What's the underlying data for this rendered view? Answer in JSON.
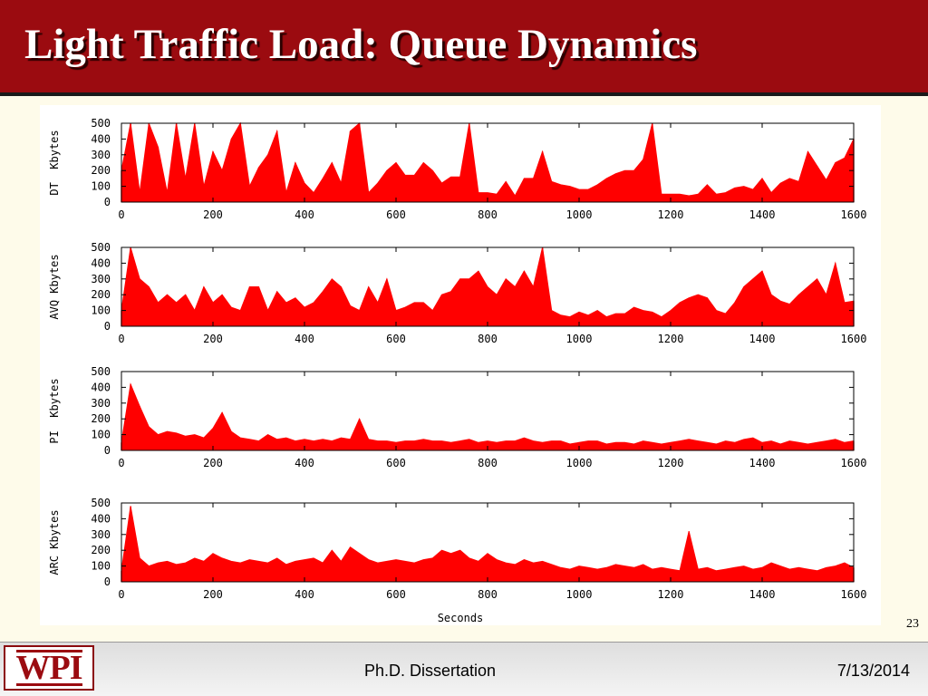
{
  "slide": {
    "title": "Light Traffic Load: Queue Dynamics",
    "page_number": "23"
  },
  "footer": {
    "logo_text": "WPI",
    "center_text": "Ph.D. Dissertation",
    "date": "7/13/2014"
  },
  "colors": {
    "title_bar": "#9b0b10",
    "series": "#ff0000",
    "background": "#fefbea"
  },
  "chart_data": [
    {
      "type": "area",
      "ylabel": "DT  Kbytes",
      "xlabel": "",
      "xlim": [
        0,
        1600
      ],
      "ylim": [
        0,
        500
      ],
      "x_ticks": [
        "0",
        "200",
        "400",
        "600",
        "800",
        "1000",
        "1200",
        "1400",
        "1600"
      ],
      "y_ticks": [
        "0",
        "100",
        "200",
        "300",
        "400",
        "500"
      ],
      "x": [
        0,
        20,
        40,
        60,
        80,
        100,
        120,
        140,
        160,
        180,
        200,
        220,
        240,
        260,
        280,
        300,
        320,
        340,
        360,
        380,
        400,
        420,
        440,
        460,
        480,
        500,
        520,
        540,
        560,
        580,
        600,
        620,
        640,
        660,
        680,
        700,
        720,
        740,
        760,
        780,
        800,
        820,
        840,
        860,
        880,
        900,
        920,
        940,
        960,
        980,
        1000,
        1020,
        1040,
        1060,
        1080,
        1100,
        1120,
        1140,
        1160,
        1180,
        1200,
        1220,
        1240,
        1260,
        1280,
        1300,
        1320,
        1340,
        1360,
        1380,
        1400,
        1420,
        1440,
        1460,
        1480,
        1500,
        1520,
        1540,
        1560,
        1580,
        1600
      ],
      "values": [
        200,
        500,
        60,
        500,
        350,
        60,
        500,
        150,
        500,
        100,
        320,
        200,
        400,
        500,
        100,
        220,
        300,
        450,
        60,
        250,
        120,
        60,
        150,
        250,
        120,
        450,
        500,
        60,
        120,
        200,
        250,
        170,
        170,
        250,
        200,
        120,
        160,
        160,
        500,
        60,
        60,
        50,
        130,
        40,
        150,
        150,
        320,
        130,
        110,
        100,
        80,
        80,
        110,
        150,
        180,
        200,
        200,
        270,
        500,
        50,
        50,
        50,
        40,
        50,
        110,
        50,
        60,
        90,
        100,
        80,
        150,
        60,
        120,
        150,
        130,
        320,
        230,
        140,
        250,
        280,
        400
      ]
    },
    {
      "type": "area",
      "ylabel": "AVQ Kbytes",
      "xlabel": "",
      "xlim": [
        0,
        1600
      ],
      "ylim": [
        0,
        500
      ],
      "x_ticks": [
        "0",
        "200",
        "400",
        "600",
        "800",
        "1000",
        "1200",
        "1400",
        "1600"
      ],
      "y_ticks": [
        "0",
        "100",
        "200",
        "300",
        "400",
        "500"
      ],
      "x": [
        0,
        20,
        40,
        60,
        80,
        100,
        120,
        140,
        160,
        180,
        200,
        220,
        240,
        260,
        280,
        300,
        320,
        340,
        360,
        380,
        400,
        420,
        440,
        460,
        480,
        500,
        520,
        540,
        560,
        580,
        600,
        620,
        640,
        660,
        680,
        700,
        720,
        740,
        760,
        780,
        800,
        820,
        840,
        860,
        880,
        900,
        920,
        940,
        960,
        980,
        1000,
        1020,
        1040,
        1060,
        1080,
        1100,
        1120,
        1140,
        1160,
        1180,
        1200,
        1220,
        1240,
        1260,
        1280,
        1300,
        1320,
        1340,
        1360,
        1380,
        1400,
        1420,
        1440,
        1460,
        1480,
        1500,
        1520,
        1540,
        1560,
        1580,
        1600
      ],
      "values": [
        100,
        500,
        300,
        250,
        150,
        200,
        150,
        200,
        100,
        250,
        150,
        200,
        120,
        100,
        250,
        250,
        100,
        220,
        150,
        180,
        120,
        150,
        220,
        300,
        250,
        130,
        100,
        250,
        150,
        300,
        100,
        120,
        150,
        150,
        100,
        200,
        220,
        300,
        300,
        350,
        250,
        200,
        300,
        250,
        350,
        250,
        500,
        100,
        70,
        60,
        90,
        70,
        100,
        60,
        80,
        80,
        120,
        100,
        90,
        60,
        100,
        150,
        180,
        200,
        180,
        100,
        80,
        150,
        250,
        300,
        350,
        200,
        160,
        140,
        200,
        250,
        300,
        200,
        400,
        150,
        160
      ]
    },
    {
      "type": "area",
      "ylabel": "PI  Kbytes",
      "xlabel": "",
      "xlim": [
        0,
        1600
      ],
      "ylim": [
        0,
        500
      ],
      "x_ticks": [
        "0",
        "200",
        "400",
        "600",
        "800",
        "1000",
        "1200",
        "1400",
        "1600"
      ],
      "y_ticks": [
        "0",
        "100",
        "200",
        "300",
        "400",
        "500"
      ],
      "x": [
        0,
        20,
        40,
        60,
        80,
        100,
        120,
        140,
        160,
        180,
        200,
        220,
        240,
        260,
        280,
        300,
        320,
        340,
        360,
        380,
        400,
        420,
        440,
        460,
        480,
        500,
        520,
        540,
        560,
        580,
        600,
        620,
        640,
        660,
        680,
        700,
        720,
        740,
        760,
        780,
        800,
        820,
        840,
        860,
        880,
        900,
        920,
        940,
        960,
        980,
        1000,
        1020,
        1040,
        1060,
        1080,
        1100,
        1120,
        1140,
        1160,
        1180,
        1200,
        1220,
        1240,
        1260,
        1280,
        1300,
        1320,
        1340,
        1360,
        1380,
        1400,
        1420,
        1440,
        1460,
        1480,
        1500,
        1520,
        1540,
        1560,
        1580,
        1600
      ],
      "values": [
        50,
        420,
        280,
        150,
        100,
        120,
        110,
        90,
        100,
        80,
        140,
        240,
        120,
        80,
        70,
        60,
        100,
        70,
        80,
        60,
        70,
        60,
        70,
        60,
        80,
        70,
        200,
        70,
        60,
        60,
        50,
        60,
        60,
        70,
        60,
        60,
        50,
        60,
        70,
        50,
        60,
        50,
        60,
        60,
        80,
        60,
        50,
        60,
        60,
        40,
        50,
        60,
        60,
        40,
        50,
        50,
        40,
        60,
        50,
        40,
        50,
        60,
        70,
        60,
        50,
        40,
        60,
        50,
        70,
        80,
        50,
        60,
        40,
        60,
        50,
        40,
        50,
        60,
        70,
        50,
        60
      ]
    },
    {
      "type": "area",
      "ylabel": "ARC Kbytes",
      "xlabel": "Seconds",
      "xlim": [
        0,
        1600
      ],
      "ylim": [
        0,
        500
      ],
      "x_ticks": [
        "0",
        "200",
        "400",
        "600",
        "800",
        "1000",
        "1200",
        "1400",
        "1600"
      ],
      "y_ticks": [
        "0",
        "100",
        "200",
        "300",
        "400",
        "500"
      ],
      "x": [
        0,
        20,
        40,
        60,
        80,
        100,
        120,
        140,
        160,
        180,
        200,
        220,
        240,
        260,
        280,
        300,
        320,
        340,
        360,
        380,
        400,
        420,
        440,
        460,
        480,
        500,
        520,
        540,
        560,
        580,
        600,
        620,
        640,
        660,
        680,
        700,
        720,
        740,
        760,
        780,
        800,
        820,
        840,
        860,
        880,
        900,
        920,
        940,
        960,
        980,
        1000,
        1020,
        1040,
        1060,
        1080,
        1100,
        1120,
        1140,
        1160,
        1180,
        1200,
        1220,
        1240,
        1260,
        1280,
        1300,
        1320,
        1340,
        1360,
        1380,
        1400,
        1420,
        1440,
        1460,
        1480,
        1500,
        1520,
        1540,
        1560,
        1580,
        1600
      ],
      "values": [
        70,
        480,
        150,
        100,
        120,
        130,
        110,
        120,
        150,
        130,
        180,
        150,
        130,
        120,
        140,
        130,
        120,
        150,
        110,
        130,
        140,
        150,
        120,
        200,
        130,
        220,
        180,
        140,
        120,
        130,
        140,
        130,
        120,
        140,
        150,
        200,
        180,
        200,
        150,
        130,
        180,
        140,
        120,
        110,
        140,
        120,
        130,
        110,
        90,
        80,
        100,
        90,
        80,
        90,
        110,
        100,
        90,
        110,
        80,
        90,
        80,
        70,
        320,
        80,
        90,
        70,
        80,
        90,
        100,
        80,
        90,
        120,
        100,
        80,
        90,
        80,
        70,
        90,
        100,
        120,
        90
      ]
    }
  ]
}
